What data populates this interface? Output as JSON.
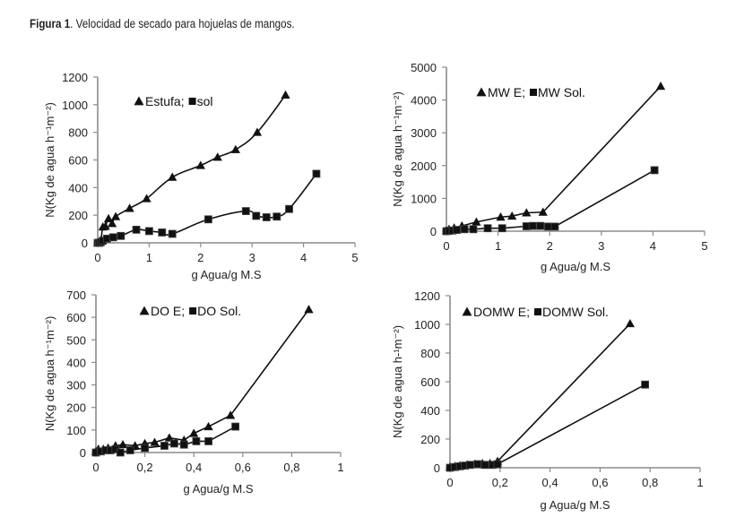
{
  "caption": {
    "label": "Figura 1",
    "text": ". Velocidad de secado para hojuelas de mangos."
  },
  "colors": {
    "axis": "#8c8c8c",
    "series": "#111111",
    "text": "#222222"
  },
  "chart_data": [
    {
      "id": "estufa-sol",
      "type": "line",
      "title": "",
      "legend_text": "Estufa;  sol",
      "legend_placement": "top-left",
      "xlabel": "g Agua/g  M.S",
      "ylabel": "N(Kg de agua h⁻¹m⁻²)",
      "xlim": [
        0,
        5
      ],
      "ylim": [
        0,
        1200
      ],
      "xticks": [
        "0",
        "1",
        "2",
        "3",
        "4",
        "5"
      ],
      "xtick_values": [
        0,
        1,
        2,
        3,
        4,
        5
      ],
      "yticks": [
        "0",
        "200",
        "400",
        "600",
        "800",
        "1000",
        "1200"
      ],
      "ytick_values": [
        0,
        200,
        400,
        600,
        800,
        1000,
        1200
      ],
      "grid": false,
      "series": [
        {
          "name": "Estufa",
          "marker": "triangle",
          "x": [
            0.0,
            0.03,
            0.06,
            0.1,
            0.15,
            0.21,
            0.28,
            0.35,
            0.62,
            0.95,
            1.45,
            2.0,
            2.33,
            2.68,
            3.1,
            3.65
          ],
          "y": [
            0,
            5,
            15,
            115,
            120,
            175,
            140,
            190,
            250,
            320,
            475,
            560,
            620,
            675,
            800,
            1070
          ]
        },
        {
          "name": "sol",
          "marker": "square",
          "x": [
            0.0,
            0.03,
            0.06,
            0.1,
            0.18,
            0.3,
            0.45,
            0.75,
            1.0,
            1.25,
            1.45,
            2.15,
            2.88,
            3.08,
            3.28,
            3.48,
            3.72,
            4.25
          ],
          "y": [
            0,
            0,
            5,
            15,
            30,
            40,
            50,
            95,
            85,
            75,
            65,
            170,
            230,
            195,
            185,
            190,
            245,
            500
          ]
        }
      ]
    },
    {
      "id": "mw",
      "type": "line",
      "title": "",
      "legend_text": " MW E;  MW Sol.",
      "legend_placement": "top-left",
      "xlabel": "g Agua/g  M.S",
      "ylabel": "N(Kg de agua h⁻¹m⁻²)",
      "xlim": [
        0,
        5
      ],
      "ylim": [
        0,
        5000
      ],
      "xticks": [
        "0",
        "1",
        "2",
        "3",
        "4",
        "5"
      ],
      "xtick_values": [
        0,
        1,
        2,
        3,
        4,
        5
      ],
      "yticks": [
        "0",
        "1000",
        "2000",
        "3000",
        "4000",
        "5000"
      ],
      "ytick_values": [
        0,
        1000,
        2000,
        3000,
        4000,
        5000
      ],
      "grid": false,
      "series": [
        {
          "name": "MW E",
          "marker": "triangle",
          "x": [
            0.0,
            0.05,
            0.15,
            0.3,
            0.58,
            1.05,
            1.27,
            1.55,
            1.87,
            4.15
          ],
          "y": [
            20,
            60,
            100,
            160,
            280,
            430,
            460,
            560,
            580,
            4420
          ]
        },
        {
          "name": "MW Sol.",
          "marker": "square",
          "x": [
            0.0,
            0.05,
            0.12,
            0.2,
            0.35,
            0.52,
            0.8,
            1.08,
            1.55,
            1.67,
            1.82,
            1.97,
            2.1,
            4.03
          ],
          "y": [
            0,
            10,
            20,
            40,
            60,
            60,
            90,
            90,
            150,
            160,
            160,
            140,
            140,
            1860
          ]
        }
      ]
    },
    {
      "id": "do",
      "type": "line",
      "title": "",
      "legend_text": "DO E; DO Sol.",
      "legend_placement": "top-left",
      "xlabel": "g Agua/g  M.S",
      "ylabel": "N(Kg de agua h⁻¹m⁻²)",
      "xlim": [
        0,
        1
      ],
      "ylim": [
        0,
        700
      ],
      "xticks": [
        "0",
        "0,2",
        "0,4",
        "0,6",
        "0,8",
        "1"
      ],
      "xtick_values": [
        0,
        0.2,
        0.4,
        0.6,
        0.8,
        1
      ],
      "yticks": [
        "0",
        "100",
        "200",
        "300",
        "400",
        "500",
        "600",
        "700"
      ],
      "ytick_values": [
        0,
        100,
        200,
        300,
        400,
        500,
        600,
        700
      ],
      "grid": false,
      "series": [
        {
          "name": "DO E",
          "marker": "triangle",
          "x": [
            0.0,
            0.01,
            0.03,
            0.05,
            0.08,
            0.11,
            0.16,
            0.2,
            0.24,
            0.3,
            0.36,
            0.4,
            0.46,
            0.55,
            0.87
          ],
          "y": [
            5,
            15,
            15,
            20,
            30,
            35,
            30,
            40,
            45,
            65,
            55,
            85,
            115,
            165,
            635
          ]
        },
        {
          "name": "DO Sol.",
          "marker": "square",
          "x": [
            0.0,
            0.02,
            0.04,
            0.06,
            0.08,
            0.1,
            0.14,
            0.2,
            0.28,
            0.32,
            0.36,
            0.41,
            0.46,
            0.57
          ],
          "y": [
            0,
            5,
            10,
            10,
            15,
            0,
            10,
            20,
            30,
            40,
            35,
            50,
            50,
            115
          ]
        }
      ]
    },
    {
      "id": "domw",
      "type": "line",
      "title": "",
      "legend_text": " DOMW E;  DOMW Sol.",
      "legend_placement": "top-left",
      "xlabel": "g Agua/g  M.S",
      "ylabel": "N(Kg de agua h-¹m⁻²)",
      "xlim": [
        0,
        1
      ],
      "ylim": [
        0,
        1200
      ],
      "xticks": [
        "0",
        "0,2",
        "0,4",
        "0,6",
        "0,8",
        "1"
      ],
      "xtick_values": [
        0,
        0.2,
        0.4,
        0.6,
        0.8,
        1
      ],
      "yticks": [
        "0",
        "200",
        "400",
        "600",
        "800",
        "1000",
        "1200"
      ],
      "ytick_values": [
        0,
        200,
        400,
        600,
        800,
        1000,
        1200
      ],
      "grid": false,
      "series": [
        {
          "name": "DOMW E",
          "marker": "triangle",
          "x": [
            0.0,
            0.02,
            0.04,
            0.07,
            0.1,
            0.13,
            0.16,
            0.19,
            0.72
          ],
          "y": [
            5,
            10,
            15,
            20,
            25,
            30,
            30,
            45,
            1005
          ]
        },
        {
          "name": "DOMW Sol.",
          "marker": "square",
          "x": [
            0.0,
            0.02,
            0.04,
            0.06,
            0.08,
            0.11,
            0.14,
            0.17,
            0.19,
            0.78
          ],
          "y": [
            0,
            5,
            10,
            15,
            20,
            25,
            20,
            20,
            25,
            580
          ]
        }
      ]
    }
  ]
}
